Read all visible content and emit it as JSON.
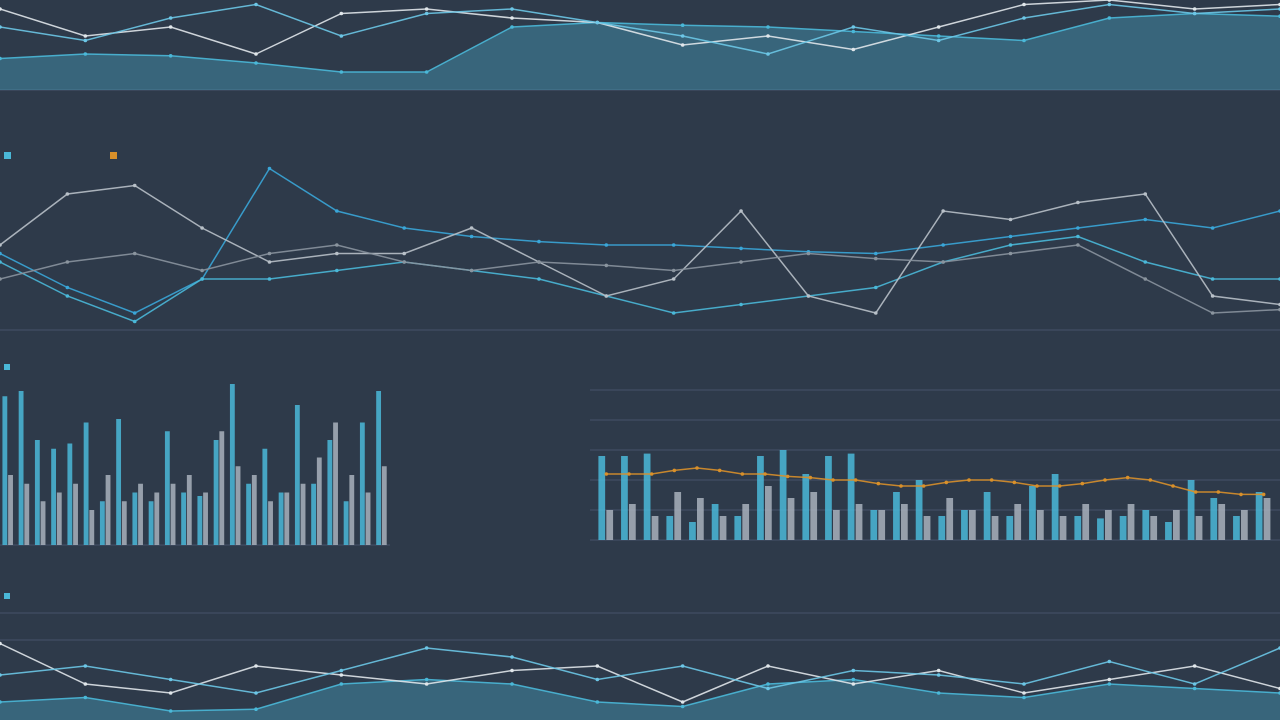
{
  "chart_data": [
    {
      "type": "line",
      "categories": [
        null,
        null,
        null,
        null,
        null,
        null,
        null,
        null,
        null,
        null,
        null,
        null,
        null,
        null,
        null,
        null
      ],
      "ylim": [
        0,
        100
      ],
      "series": [
        {
          "color": "#4ab8d8",
          "fill": true,
          "values": [
            35,
            40,
            38,
            30,
            20,
            20,
            70,
            75,
            72,
            70,
            65,
            60,
            55,
            80,
            85,
            82
          ]
        },
        {
          "color": "#e0e6ea",
          "values": [
            90,
            60,
            70,
            40,
            85,
            90,
            80,
            75,
            50,
            60,
            45,
            70,
            95,
            100,
            90,
            95
          ]
        },
        {
          "color": "#6cc6e6",
          "values": [
            70,
            55,
            80,
            95,
            60,
            85,
            90,
            75,
            60,
            40,
            70,
            55,
            80,
            95,
            85,
            90
          ]
        }
      ]
    },
    {
      "type": "line",
      "categories": [
        null,
        null,
        null,
        null,
        null,
        null,
        null,
        null,
        null,
        null,
        null,
        null,
        null,
        null,
        null,
        null,
        null,
        null,
        null,
        null
      ],
      "ylim": [
        0,
        100
      ],
      "series": [
        {
          "color": "#3aa6d8",
          "values": [
            45,
            25,
            10,
            30,
            95,
            70,
            60,
            55,
            52,
            50,
            50,
            48,
            46,
            45,
            50,
            55,
            60,
            65,
            60,
            70
          ]
        },
        {
          "color": "#4ab8d8",
          "values": [
            40,
            20,
            5,
            30,
            30,
            35,
            40,
            35,
            30,
            20,
            10,
            15,
            20,
            25,
            40,
            50,
            55,
            40,
            30,
            30
          ]
        },
        {
          "color": "#b8c0c8",
          "values": [
            50,
            80,
            85,
            60,
            40,
            45,
            45,
            60,
            40,
            20,
            30,
            70,
            20,
            10,
            70,
            65,
            75,
            80,
            20,
            15
          ]
        },
        {
          "color": "#8a949e",
          "values": [
            30,
            40,
            45,
            35,
            45,
            50,
            40,
            35,
            40,
            38,
            35,
            40,
            45,
            42,
            40,
            45,
            50,
            30,
            10,
            12
          ]
        }
      ]
    },
    {
      "type": "bar",
      "categories": [
        null,
        null,
        null,
        null,
        null,
        null,
        null,
        null,
        null,
        null,
        null,
        null,
        null,
        null,
        null,
        null,
        null,
        null,
        null,
        null,
        null,
        null,
        null,
        null
      ],
      "ylim": [
        0,
        100
      ],
      "series": [
        {
          "color": "#4ab8d8",
          "values": [
            85,
            88,
            60,
            55,
            58,
            70,
            25,
            72,
            30,
            25,
            65,
            30,
            28,
            60,
            92,
            35,
            55,
            30,
            80,
            35,
            60,
            25,
            70,
            88
          ]
        },
        {
          "color": "#a8b2bc",
          "values": [
            40,
            35,
            25,
            30,
            35,
            20,
            40,
            25,
            35,
            30,
            35,
            40,
            30,
            65,
            45,
            40,
            25,
            30,
            35,
            50,
            70,
            40,
            30,
            45
          ]
        }
      ]
    },
    {
      "type": "bar",
      "categories": [
        null,
        null,
        null,
        null,
        null,
        null,
        null,
        null,
        null,
        null,
        null,
        null,
        null,
        null,
        null,
        null,
        null,
        null,
        null,
        null,
        null,
        null,
        null,
        null,
        null,
        null,
        null,
        null,
        null,
        null
      ],
      "ylim": [
        0,
        100
      ],
      "series": [
        {
          "color": "#4ab8d8",
          "values": [
            70,
            70,
            72,
            20,
            15,
            30,
            20,
            70,
            75,
            55,
            70,
            72,
            25,
            40,
            50,
            20,
            25,
            40,
            20,
            45,
            55,
            20,
            18,
            20,
            25,
            15,
            50,
            35,
            20,
            40
          ]
        },
        {
          "color": "#a8b2bc",
          "values": [
            25,
            30,
            20,
            40,
            35,
            20,
            30,
            45,
            35,
            40,
            25,
            30,
            25,
            30,
            20,
            35,
            25,
            20,
            30,
            25,
            20,
            30,
            25,
            30,
            20,
            25,
            20,
            30,
            25,
            35
          ]
        },
        {
          "color": "#d9902a",
          "type": "line",
          "values": [
            55,
            55,
            55,
            58,
            60,
            58,
            55,
            55,
            53,
            52,
            50,
            50,
            47,
            45,
            45,
            48,
            50,
            50,
            48,
            45,
            45,
            47,
            50,
            52,
            50,
            45,
            40,
            40,
            38,
            38
          ]
        }
      ]
    },
    {
      "type": "line",
      "categories": [
        null,
        null,
        null,
        null,
        null,
        null,
        null,
        null,
        null,
        null,
        null,
        null,
        null,
        null,
        null,
        null
      ],
      "ylim": [
        0,
        100
      ],
      "series": [
        {
          "color": "#4ab8d8",
          "fill": true,
          "values": [
            20,
            25,
            10,
            12,
            40,
            45,
            40,
            20,
            15,
            40,
            45,
            30,
            25,
            40,
            35,
            30
          ]
        },
        {
          "color": "#e0e6ea",
          "values": [
            85,
            40,
            30,
            60,
            50,
            40,
            55,
            60,
            20,
            60,
            40,
            55,
            30,
            45,
            60,
            35
          ]
        },
        {
          "color": "#6cc6e6",
          "values": [
            50,
            60,
            45,
            30,
            55,
            80,
            70,
            45,
            60,
            35,
            55,
            50,
            40,
            65,
            40,
            80
          ]
        }
      ]
    }
  ]
}
